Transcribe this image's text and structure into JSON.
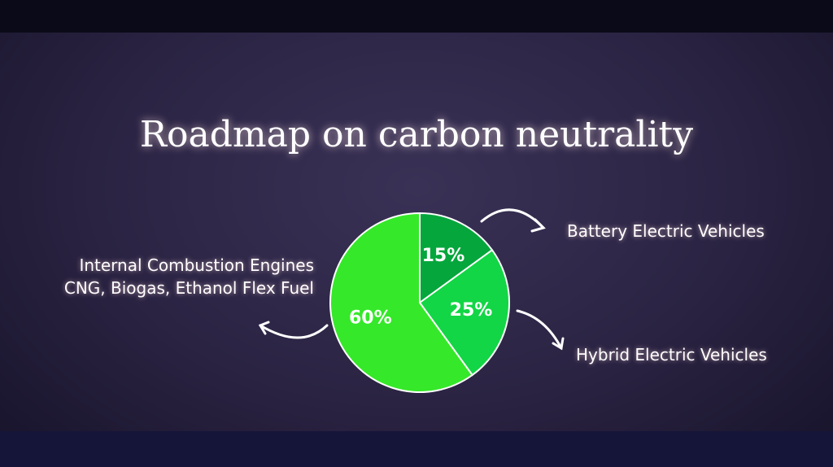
{
  "chart_data": {
    "type": "pie",
    "title": "Roadmap on carbon neutrality",
    "categories": [
      "Battery Electric Vehicles",
      "Hybrid Electric Vehicles",
      "Internal Combustion Engines\nCNG, Biogas, Ethanol Flex Fuel"
    ],
    "values": [
      15,
      25,
      60
    ],
    "value_labels": [
      "15%",
      "25%",
      "60%"
    ],
    "colors": [
      "#05a63c",
      "#12d645",
      "#35e829"
    ]
  }
}
